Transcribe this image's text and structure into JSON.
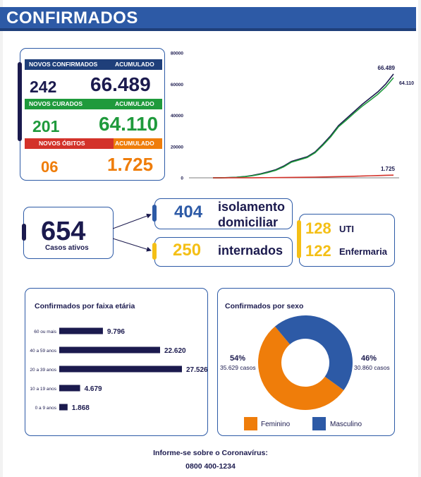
{
  "header": {
    "title": "CONFIRMADOS"
  },
  "summary": {
    "confirmed": {
      "new_label": "NOVOS CONFIRMADOS",
      "acc_label": "ACUMULADO",
      "new_value": "242",
      "acc_value": "66.489"
    },
    "recovered": {
      "new_label": "NOVOS CURADOS",
      "acc_label": "ACUMULADO",
      "new_value": "201",
      "acc_value": "64.110"
    },
    "deaths": {
      "new_label": "NOVOS ÓBITOS",
      "acc_label": "ACUMULADO",
      "new_value": "06",
      "acc_value": "1.725"
    }
  },
  "active": {
    "value": "654",
    "label": "Casos ativos",
    "isolation": {
      "value": "404",
      "line1": "isolamento",
      "line2": "domiciliar"
    },
    "hospital": {
      "value": "250",
      "label": "internados"
    },
    "uti": {
      "value": "128",
      "label": "UTI"
    },
    "ward": {
      "value": "122",
      "label": "Enfermaria"
    }
  },
  "age_panel": {
    "title": "Confirmados por faixa etária"
  },
  "sex_panel": {
    "title": "Confirmados por sexo",
    "female": {
      "pct": "54%",
      "cases": "35.629 casos",
      "legend": "Feminino"
    },
    "male": {
      "pct": "46%",
      "cases": "30.860 casos",
      "legend": "Masculino"
    }
  },
  "footer": {
    "line1": "Informe-se sobre o Coronavírus:",
    "line2": "0800 400-1234"
  },
  "colors": {
    "navy": "#1b1a4e",
    "blue": "#2d5aa6",
    "green": "#1f9a3c",
    "orange": "#ef7d0a",
    "red": "#d3322a",
    "yellow": "#f4bf16"
  },
  "chart_data": [
    {
      "type": "line",
      "ylim": [
        0,
        80000
      ],
      "yticks": [
        "0",
        "20000",
        "40000",
        "60000",
        "80000"
      ],
      "grid": false,
      "series": [
        {
          "values": [
            0,
            50,
            150,
            350,
            800,
            1500,
            2500,
            3800,
            5200,
            7500,
            10500,
            12000,
            13500,
            16500,
            21500,
            27000,
            33500,
            38000,
            42500,
            47000,
            51000,
            55000,
            60000,
            66489
          ],
          "end_label": "66.489",
          "color": "#1b1a4e"
        },
        {
          "values": [
            0,
            40,
            120,
            300,
            700,
            1300,
            2200,
            3400,
            4800,
            7000,
            10000,
            11500,
            13000,
            16000,
            20800,
            26200,
            32700,
            37000,
            41500,
            45800,
            49600,
            53500,
            58200,
            64110
          ],
          "end_label": "64.110",
          "color": "#1f9a3c"
        },
        {
          "values": [
            0,
            5,
            10,
            20,
            30,
            50,
            80,
            110,
            150,
            200,
            260,
            320,
            380,
            450,
            540,
            640,
            760,
            880,
            1000,
            1150,
            1300,
            1450,
            1600,
            1725
          ],
          "end_label": "1.725",
          "color": "#d3322a"
        }
      ]
    },
    {
      "type": "bar",
      "categories": [
        "60 ou mais",
        "40 a 59 anos",
        "20 a 39 anos",
        "10 a 19 anos",
        "0 a 9 anos"
      ],
      "values": [
        9796,
        22620,
        27526,
        4679,
        1868
      ],
      "value_labels": [
        "9.796",
        "22.620",
        "27.526",
        "4.679",
        "1.868"
      ],
      "color": "#1b1a4e"
    },
    {
      "type": "pie",
      "categories": [
        "Feminino",
        "Masculino"
      ],
      "values": [
        54,
        46
      ],
      "colors": [
        "#ef7d0a",
        "#2d5aa6"
      ]
    }
  ]
}
